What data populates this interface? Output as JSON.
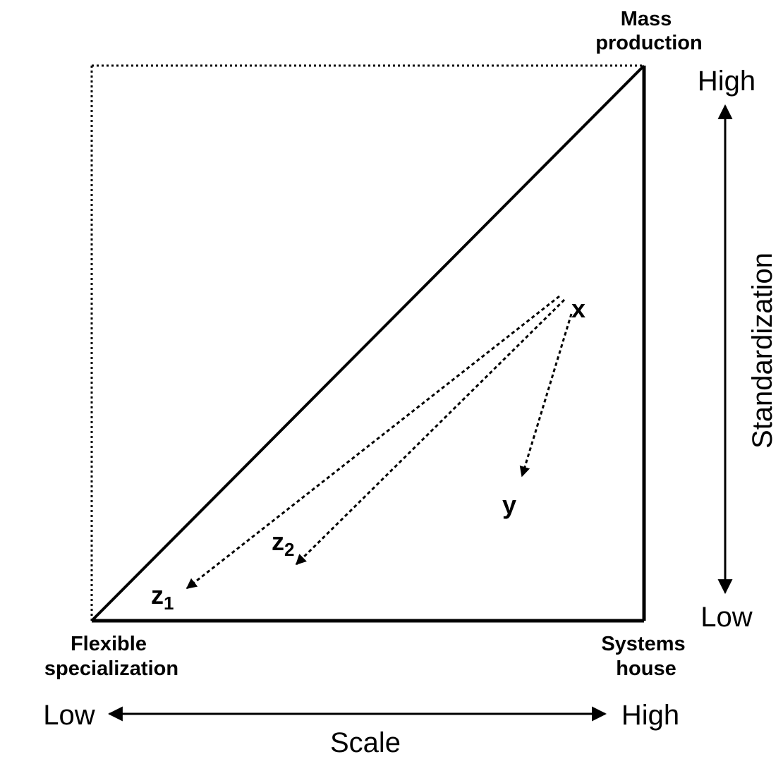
{
  "corners": {
    "top_right": {
      "lines": [
        "Mass",
        "production"
      ]
    },
    "bottom_left": {
      "lines": [
        "Flexible",
        "specialization"
      ]
    },
    "bottom_right": {
      "lines": [
        "Systems",
        "house"
      ]
    }
  },
  "vertical_axis": {
    "label": "Standardization",
    "high": "High",
    "low": "Low"
  },
  "horizontal_axis": {
    "label": "Scale",
    "low": "Low",
    "high": "High"
  },
  "points": {
    "x": {
      "label": "x"
    },
    "y": {
      "label": "y"
    },
    "z1": {
      "label": "z",
      "subscript": "1"
    },
    "z2": {
      "label": "z",
      "subscript": "2"
    }
  }
}
